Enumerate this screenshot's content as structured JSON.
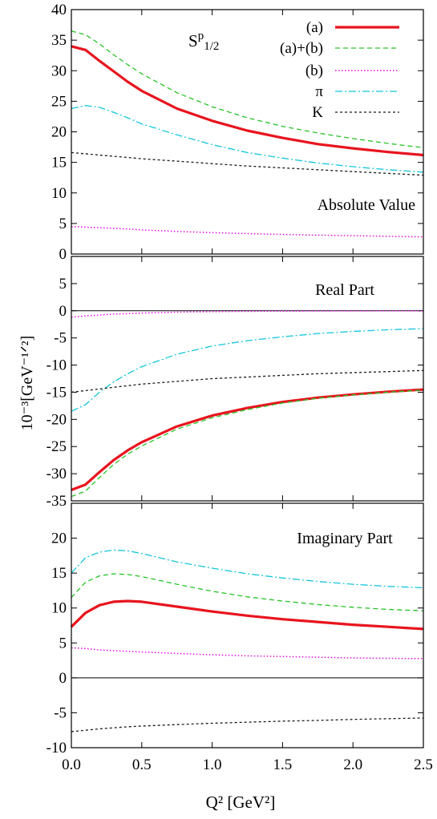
{
  "figure": {
    "ylabel": "10⁻³[GeV⁻¹ᐟ²]",
    "xlabel": "Q² [GeV²]",
    "x_ticks": [
      "0.0",
      "0.5",
      "1.0",
      "1.5",
      "2.0",
      "2.5"
    ]
  },
  "styles": {
    "(a)": {
      "color": "#e8141e",
      "dash": "",
      "width": 3.2
    },
    "(a)+(b)": {
      "color": "#27c327",
      "dash": "6,4",
      "width": 1.3
    },
    "(b)": {
      "color": "#e019e0",
      "dash": "1.6,2.4",
      "width": 1.5
    },
    "π": {
      "color": "#15c6dd",
      "dash": "9,3,2,3",
      "width": 1.3
    },
    "K": {
      "color": "#1a1a1a",
      "dash": "3,3",
      "width": 1.3
    }
  },
  "chart_data": [
    {
      "type": "line",
      "title": "S^p_1/2",
      "annotation": "Absolute Value",
      "xlim": [
        0,
        2.5
      ],
      "ylim": [
        0,
        40
      ],
      "yticks": [
        0,
        5,
        10,
        15,
        20,
        25,
        30,
        35,
        40
      ],
      "legend": "top-right",
      "legend_entries": [
        "(a)",
        "(a)+(b)",
        "(b)",
        "π",
        "K"
      ],
      "x": [
        0,
        0.1,
        0.2,
        0.3,
        0.4,
        0.5,
        0.75,
        1.0,
        1.25,
        1.5,
        1.75,
        2.0,
        2.25,
        2.5
      ],
      "series": [
        {
          "name": "(a)",
          "values": [
            34.0,
            33.4,
            31.6,
            29.9,
            28.2,
            26.7,
            23.8,
            21.8,
            20.2,
            19.0,
            18.0,
            17.3,
            16.7,
            16.2
          ]
        },
        {
          "name": "(a)+(b)",
          "values": [
            36.5,
            35.9,
            34.4,
            32.6,
            31.0,
            29.5,
            26.4,
            24.1,
            22.3,
            20.9,
            19.8,
            18.9,
            18.1,
            17.4
          ]
        },
        {
          "name": "(b)",
          "values": [
            4.5,
            4.4,
            4.3,
            4.2,
            4.1,
            3.95,
            3.7,
            3.5,
            3.35,
            3.2,
            3.1,
            3.0,
            2.9,
            2.8
          ]
        },
        {
          "name": "π",
          "values": [
            23.8,
            24.3,
            24.0,
            23.2,
            22.3,
            21.3,
            19.5,
            17.9,
            16.6,
            15.7,
            14.9,
            14.3,
            13.8,
            13.4
          ]
        },
        {
          "name": "K",
          "values": [
            16.6,
            16.4,
            16.2,
            16.0,
            15.8,
            15.6,
            15.2,
            14.8,
            14.4,
            14.1,
            13.8,
            13.5,
            13.2,
            12.9
          ]
        }
      ]
    },
    {
      "type": "line",
      "annotation": "Real Part",
      "xlim": [
        0,
        2.5
      ],
      "ylim": [
        -35,
        10
      ],
      "yticks": [
        -35,
        -30,
        -25,
        -20,
        -15,
        -10,
        -5,
        0,
        5
      ],
      "zero_line": true,
      "x": [
        0,
        0.1,
        0.2,
        0.3,
        0.4,
        0.5,
        0.75,
        1.0,
        1.25,
        1.5,
        1.75,
        2.0,
        2.25,
        2.5
      ],
      "series": [
        {
          "name": "(a)",
          "values": [
            -33.0,
            -32.0,
            -29.7,
            -27.5,
            -25.7,
            -24.2,
            -21.3,
            -19.3,
            -17.9,
            -16.8,
            -16.0,
            -15.4,
            -14.9,
            -14.5
          ]
        },
        {
          "name": "(a)+(b)",
          "values": [
            -34.2,
            -33.2,
            -30.7,
            -28.3,
            -26.4,
            -24.9,
            -21.8,
            -19.7,
            -18.2,
            -17.0,
            -16.1,
            -15.5,
            -15.0,
            -14.6
          ]
        },
        {
          "name": "(b)",
          "values": [
            -1.2,
            -0.95,
            -0.78,
            -0.63,
            -0.52,
            -0.42,
            -0.26,
            -0.17,
            -0.11,
            -0.07,
            -0.05,
            -0.03,
            -0.02,
            -0.01
          ]
        },
        {
          "name": "π",
          "values": [
            -18.5,
            -17.3,
            -15.0,
            -13.1,
            -11.6,
            -10.3,
            -8.0,
            -6.5,
            -5.5,
            -4.8,
            -4.2,
            -3.8,
            -3.5,
            -3.3
          ]
        },
        {
          "name": "K",
          "values": [
            -15.0,
            -14.7,
            -14.4,
            -14.1,
            -13.8,
            -13.5,
            -13.0,
            -12.5,
            -12.2,
            -11.9,
            -11.6,
            -11.4,
            -11.2,
            -11.0
          ]
        }
      ]
    },
    {
      "type": "line",
      "annotation": "Imaginary Part",
      "xlim": [
        0,
        2.5
      ],
      "ylim": [
        -10,
        25
      ],
      "yticks": [
        -10,
        -5,
        0,
        5,
        10,
        15,
        20
      ],
      "zero_line": true,
      "x": [
        0,
        0.1,
        0.2,
        0.3,
        0.4,
        0.5,
        0.75,
        1.0,
        1.25,
        1.5,
        1.75,
        2.0,
        2.25,
        2.5
      ],
      "series": [
        {
          "name": "(a)",
          "values": [
            7.3,
            9.3,
            10.4,
            10.9,
            11.0,
            10.9,
            10.2,
            9.5,
            8.9,
            8.4,
            8.0,
            7.6,
            7.3,
            7.0
          ]
        },
        {
          "name": "(a)+(b)",
          "values": [
            11.5,
            13.7,
            14.6,
            14.9,
            14.8,
            14.5,
            13.4,
            12.4,
            11.6,
            11.0,
            10.5,
            10.1,
            9.8,
            9.6
          ]
        },
        {
          "name": "(b)",
          "values": [
            4.3,
            4.2,
            4.0,
            3.9,
            3.8,
            3.7,
            3.5,
            3.3,
            3.15,
            3.05,
            2.95,
            2.85,
            2.8,
            2.75
          ]
        },
        {
          "name": "π",
          "values": [
            15.0,
            17.2,
            18.0,
            18.3,
            18.2,
            17.8,
            16.6,
            15.7,
            14.9,
            14.3,
            13.8,
            13.4,
            13.1,
            12.9
          ]
        },
        {
          "name": "K",
          "values": [
            -7.7,
            -7.5,
            -7.3,
            -7.15,
            -7.0,
            -6.9,
            -6.7,
            -6.5,
            -6.35,
            -6.2,
            -6.1,
            -5.95,
            -5.85,
            -5.75
          ]
        }
      ]
    }
  ]
}
